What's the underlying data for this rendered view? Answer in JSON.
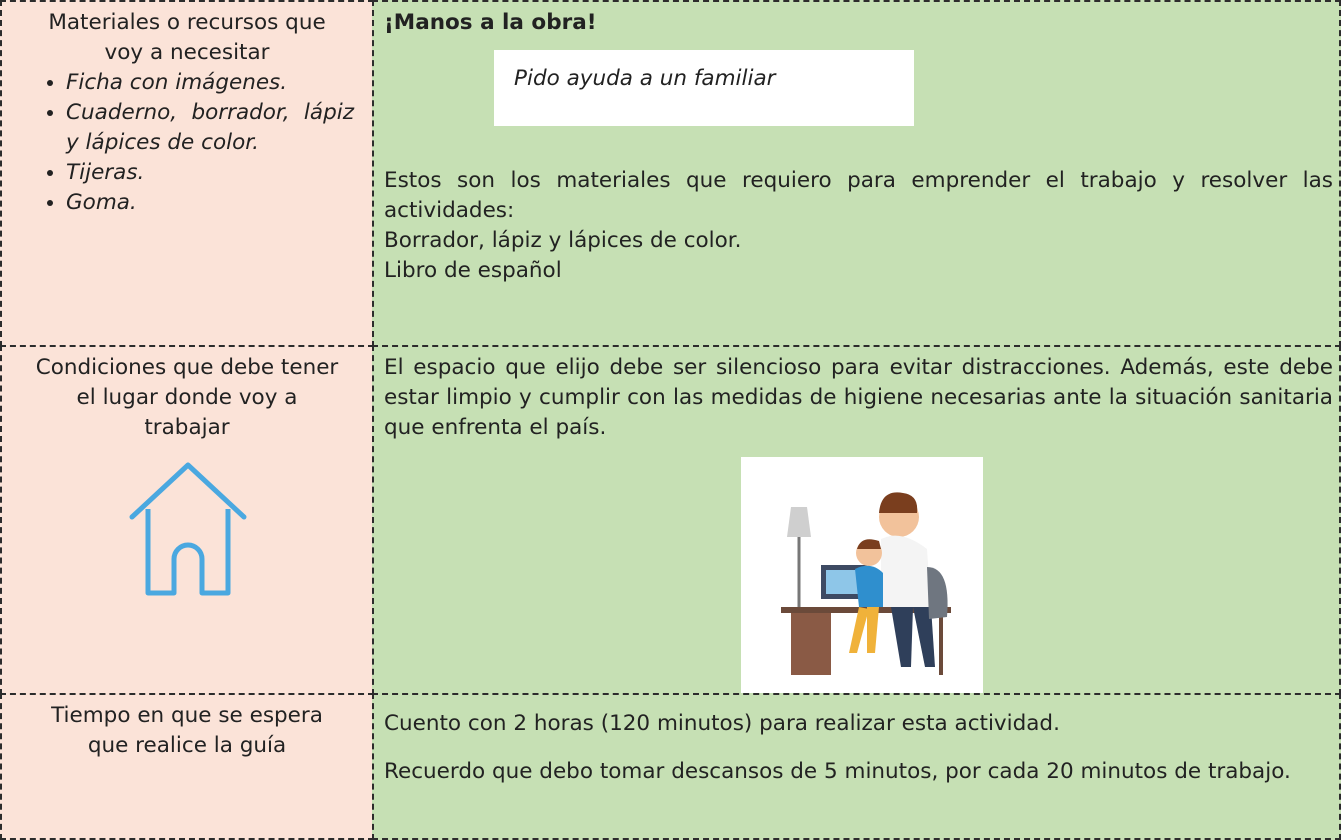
{
  "rows": [
    {
      "label": "Materiales o recursos que voy a necesitar",
      "items": [
        "Ficha con imágenes.",
        "Cuaderno, borrador, lápiz y lápices de color.",
        "Tijeras.",
        "Goma."
      ],
      "heading": "¡Manos a la obra!",
      "note": "Pido ayuda a un familiar",
      "paragraphs": [
        "Estos son los materiales que requiero para emprender el trabajo y resolver las actividades:",
        "Borrador, lápiz y lápices de color.",
        "Libro de español"
      ]
    },
    {
      "label": "Condiciones que debe tener el lugar donde voy a trabajar",
      "paragraphs": [
        "El espacio que elijo debe ser silencioso para evitar distracciones. Además, este debe estar limpio y cumplir con las medidas de higiene necesarias ante la situación sanitaria que enfrenta el país."
      ]
    },
    {
      "label": "Tiempo en que se espera que realice la guía",
      "paragraphs": [
        "Cuento con 2 horas (120 minutos) para realizar esta actividad.",
        "Recuerdo que debo tomar descansos de 5 minutos, por cada 20 minutos de trabajo."
      ]
    }
  ]
}
